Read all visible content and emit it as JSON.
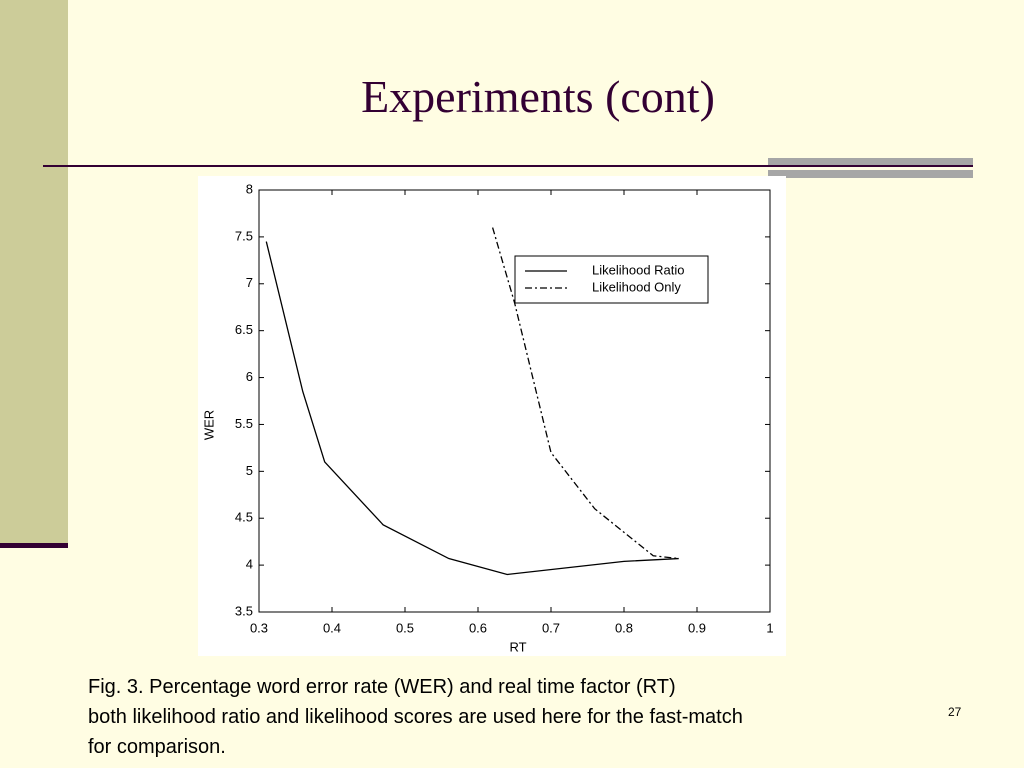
{
  "slide": {
    "title": "Experiments (cont)",
    "caption": [
      "Fig. 3. Percentage word error rate (WER) and real time factor (RT)",
      "both likelihood ratio and likelihood scores are used here for the fast-match",
      "for comparison."
    ],
    "page_number": "27"
  },
  "chart_data": {
    "type": "line",
    "x_label": "RT",
    "y_label": "WER",
    "xlim": [
      0.3,
      1
    ],
    "xticks": [
      0.3,
      0.4,
      0.5,
      0.6,
      0.7,
      0.8,
      0.9,
      1
    ],
    "ylim": [
      3.5,
      8
    ],
    "yticks": [
      3.5,
      4,
      4.5,
      5,
      5.5,
      6,
      6.5,
      7,
      7.5,
      8
    ],
    "legend": "upper right",
    "series": [
      {
        "name": "Likelihood Ratio",
        "color": "#000000",
        "linestyle": "solid",
        "x": [
          0.31,
          0.36,
          0.39,
          0.47,
          0.56,
          0.64,
          0.8,
          0.875
        ],
        "values": [
          7.45,
          5.85,
          5.1,
          4.43,
          4.07,
          3.9,
          4.04,
          4.07
        ]
      },
      {
        "name": "Likelihood Only",
        "color": "#000000",
        "linestyle": "dashdot",
        "x": [
          0.62,
          0.65,
          0.7,
          0.76,
          0.84,
          0.875
        ],
        "values": [
          7.6,
          6.8,
          5.2,
          4.6,
          4.1,
          4.07
        ]
      }
    ]
  }
}
